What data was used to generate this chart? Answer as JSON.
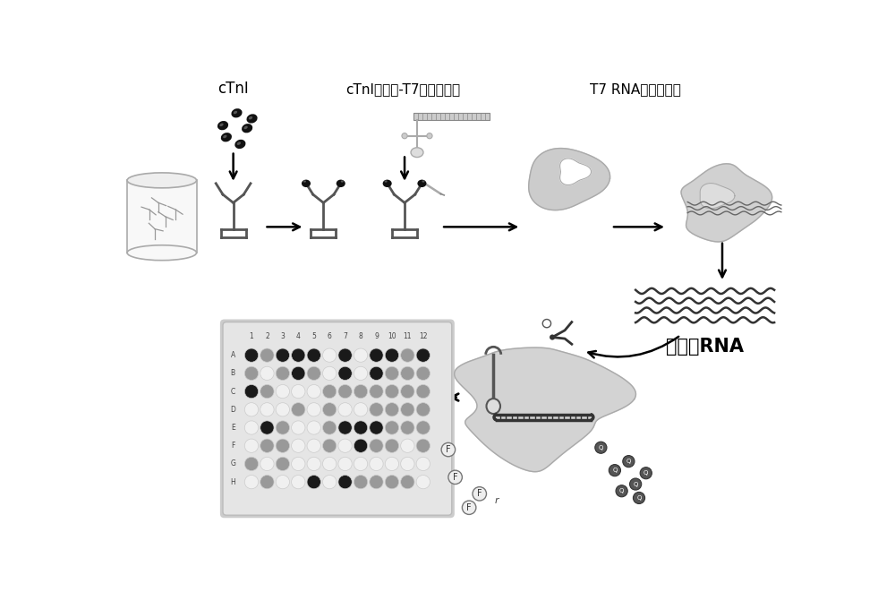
{
  "background_color": "#ffffff",
  "labels": {
    "cTnI": "cTnI",
    "aptamer": "cTnI适配体-T7启动子双链",
    "t7_transcription": "T7 RNA聚合酶转录",
    "activator_rna": "激活子RNA"
  },
  "plate_rows": [
    "A",
    "B",
    "C",
    "D",
    "E",
    "F",
    "G",
    "H"
  ],
  "plate_cols": [
    "1",
    "2",
    "3",
    "4",
    "5",
    "6",
    "7",
    "8",
    "9",
    "10",
    "11",
    "12"
  ],
  "well_colors": [
    [
      10,
      5,
      10,
      10,
      10,
      0,
      10,
      0,
      10,
      10,
      5,
      10
    ],
    [
      5,
      0,
      5,
      10,
      5,
      0,
      10,
      0,
      10,
      5,
      5,
      5
    ],
    [
      10,
      5,
      0,
      0,
      0,
      5,
      5,
      5,
      5,
      5,
      5,
      5
    ],
    [
      0,
      0,
      0,
      5,
      0,
      5,
      0,
      0,
      5,
      5,
      5,
      5
    ],
    [
      0,
      10,
      5,
      0,
      0,
      5,
      10,
      10,
      10,
      5,
      5,
      5
    ],
    [
      0,
      5,
      5,
      0,
      0,
      5,
      0,
      10,
      5,
      5,
      0,
      5
    ],
    [
      5,
      0,
      5,
      0,
      0,
      0,
      0,
      0,
      0,
      0,
      0,
      0
    ],
    [
      0,
      5,
      0,
      0,
      10,
      0,
      10,
      5,
      5,
      5,
      5,
      0
    ]
  ],
  "gray_levels": {
    "0": "#f0f0f0",
    "5": "#999999",
    "10": "#1a1a1a"
  }
}
